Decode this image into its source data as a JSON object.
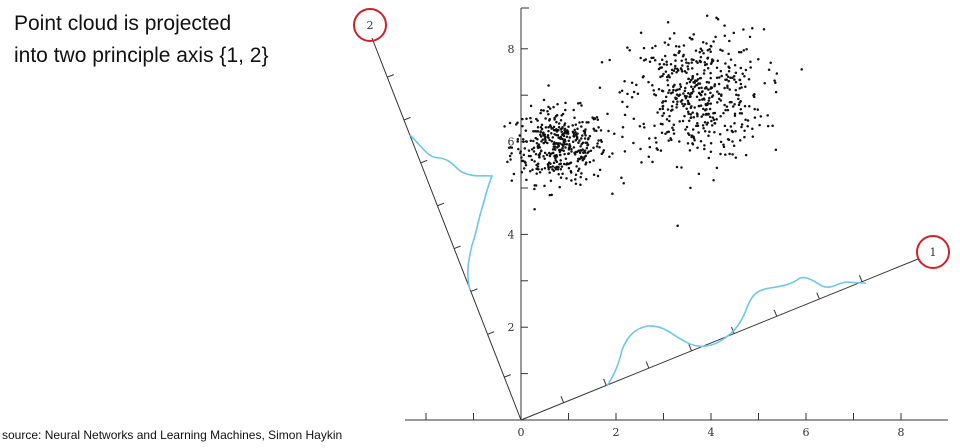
{
  "title": {
    "line1": "Point cloud is projected",
    "line2": "into two principle axis {1, 2}"
  },
  "source": "e source: Neural Networks and Learning Machines, Simon Haykin",
  "colors": {
    "points": "#111111",
    "axes": "#333333",
    "projection_curve": "#6ec6ea",
    "circle_markers": "#d0202a"
  },
  "principal_axes": [
    {
      "label": "2",
      "direction": "up-left"
    },
    {
      "label": "1",
      "direction": "up-right"
    }
  ],
  "chart_data": {
    "type": "scatter",
    "x_ticks": [
      "0",
      "2",
      "4",
      "6",
      "8"
    ],
    "y_ticks": [
      "2",
      "4",
      "6",
      "8"
    ],
    "xlim": [
      0,
      9
    ],
    "ylim": [
      0,
      9
    ],
    "clusters": [
      {
        "center": [
          0.8,
          5.9
        ],
        "spread": [
          0.5,
          0.4
        ],
        "count": 420
      },
      {
        "center": [
          3.7,
          7.0
        ],
        "spread": [
          0.7,
          0.7
        ],
        "count": 520
      }
    ]
  }
}
